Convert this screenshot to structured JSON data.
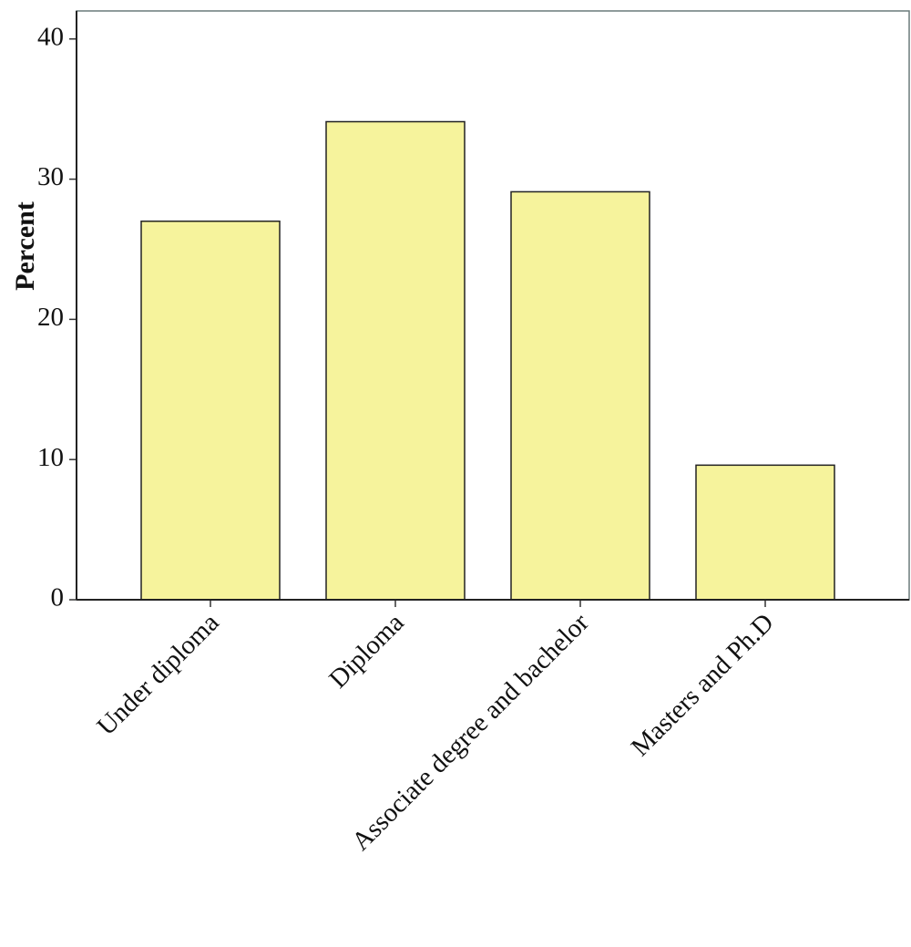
{
  "chart_data": {
    "type": "bar",
    "y_label": "Percent",
    "categories": [
      "Under diploma",
      "Diploma",
      "Associate degree and bachelor",
      "Masters and Ph.D"
    ],
    "values": [
      27.0,
      34.1,
      29.1,
      9.6
    ],
    "color": "#f6f39c",
    "ylim": [
      0,
      42
    ],
    "yticks": [
      0,
      10,
      20,
      30,
      40
    ],
    "grid": false
  }
}
